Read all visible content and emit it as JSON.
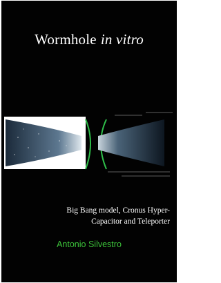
{
  "cover": {
    "title": {
      "main": "Wormhole",
      "italic": "in vitro"
    },
    "subtitle_lines": [
      "Big Bang model, Cronus Hyper-",
      "Capacitor and Teleporter"
    ],
    "author": "Antonio Silvestro"
  }
}
